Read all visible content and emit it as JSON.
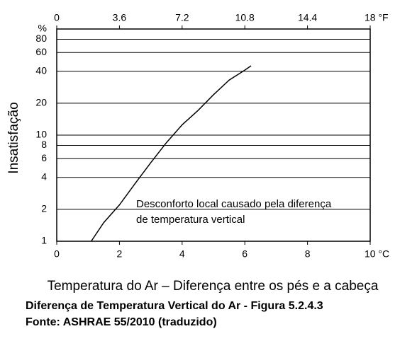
{
  "chart_data": {
    "type": "line",
    "y_label": "Insatisfação",
    "y_unit_label": "%",
    "x_label": "Temperatura do Ar – Diferença entre os pés e a cabeça",
    "captions": [
      "Diferença de Temperatura Vertical do Ar - Figura 5.2.4.3",
      "Fonte: ASHRAE 55/2010 (traduzido)"
    ],
    "annotation": [
      "Desconforto local causado pela diferença",
      "de temperatura vertical"
    ],
    "log_y": true,
    "grid": "y",
    "xlim": [
      0,
      10
    ],
    "xticks": [
      0,
      2,
      4,
      6,
      8,
      {
        "value": 10,
        "label": "10 °C"
      }
    ],
    "x2lim": [
      0,
      18
    ],
    "x2ticks": [
      0,
      3.6,
      7.2,
      10.8,
      14.4,
      {
        "value": 18,
        "label": "18 °F"
      }
    ],
    "ylim": [
      1,
      100
    ],
    "yticks": [
      1,
      2,
      4,
      6,
      8,
      10,
      20,
      40,
      60,
      80
    ],
    "series": [
      {
        "color": "#000000",
        "x": [
          1.1,
          1.5,
          2,
          2.5,
          3,
          3.5,
          4,
          4.5,
          5,
          5.5,
          6,
          6.2
        ],
        "values": [
          1,
          1.5,
          2.2,
          3.5,
          5.5,
          8.5,
          12.5,
          17,
          24,
          33,
          41,
          45
        ]
      }
    ]
  }
}
